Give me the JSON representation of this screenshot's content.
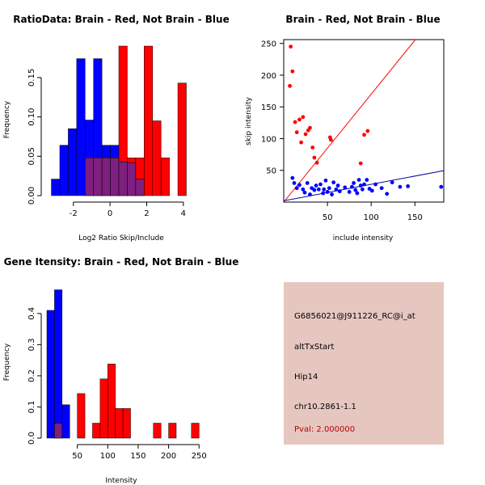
{
  "colors": {
    "red": "#ff0000",
    "blue": "#0000ff",
    "overlap": "#7f1f7f",
    "info_bg": "#e6c7c0",
    "pval": "#bb0000",
    "red_line": "#ff0000",
    "blue_line": "#0000aa"
  },
  "chart_data": [
    {
      "id": "ratio",
      "type": "bar",
      "title": "RatioData: Brain - Red, Not Brain - Blue",
      "xlabel": "Log2 Ratio Skip/Include",
      "ylabel": "Frequency",
      "xlim": [
        -3.4,
        4.8
      ],
      "ylim": [
        0,
        0.19
      ],
      "xticks": [
        -2,
        0,
        2,
        4
      ],
      "yticks": [
        0.0,
        0.05,
        0.1,
        0.15
      ],
      "ytick_labels": [
        "0.00",
        "0.05",
        "0.10",
        "0.15"
      ],
      "bin_width": 0.46,
      "series": [
        {
          "name": "Not Brain",
          "color": "blue",
          "bins": [
            [
              -3.2,
              0.021
            ],
            [
              -2.74,
              0.064
            ],
            [
              -2.28,
              0.085
            ],
            [
              -1.82,
              0.174
            ],
            [
              -1.36,
              0.096
            ],
            [
              -0.9,
              0.174
            ],
            [
              -0.44,
              0.064
            ],
            [
              0.02,
              0.064
            ],
            [
              0.48,
              0.043
            ],
            [
              0.94,
              0.042
            ],
            [
              1.4,
              0.021
            ]
          ]
        },
        {
          "name": "Brain",
          "color": "red",
          "bins": [
            [
              -1.36,
              0.048
            ],
            [
              -0.9,
              0.048
            ],
            [
              -0.44,
              0.048
            ],
            [
              0.02,
              0.048
            ],
            [
              0.48,
              0.19
            ],
            [
              0.94,
              0.048
            ],
            [
              1.4,
              0.048
            ],
            [
              1.86,
              0.19
            ],
            [
              2.32,
              0.095
            ],
            [
              2.78,
              0.048
            ],
            [
              3.7,
              0.143
            ]
          ]
        }
      ]
    },
    {
      "id": "scatter",
      "type": "scatter",
      "title": "Brain - Red, Not Brain - Blue",
      "xlabel": "include intensity",
      "ylabel": "skip intensity",
      "xlim": [
        0,
        183
      ],
      "ylim": [
        0,
        256
      ],
      "xticks": [
        50,
        100,
        150
      ],
      "yticks": [
        50,
        100,
        150,
        200,
        250
      ],
      "red_line": {
        "slope": 1.7,
        "intercept": 0
      },
      "blue_line": {
        "slope": 0.26,
        "intercept": 2
      },
      "series": [
        {
          "name": "Brain",
          "color": "red",
          "points": [
            [
              7,
              183
            ],
            [
              8,
              245
            ],
            [
              10,
              206
            ],
            [
              13,
              126
            ],
            [
              15,
              110
            ],
            [
              18,
              130
            ],
            [
              20,
              94
            ],
            [
              22,
              134
            ],
            [
              25,
              107
            ],
            [
              28,
              113
            ],
            [
              30,
              117
            ],
            [
              33,
              86
            ],
            [
              35,
              70
            ],
            [
              38,
              62
            ],
            [
              53,
              102
            ],
            [
              54,
              98
            ],
            [
              88,
              61
            ],
            [
              92,
              106
            ],
            [
              96,
              112
            ]
          ]
        },
        {
          "name": "Not Brain",
          "color": "blue",
          "points": [
            [
              10,
              38
            ],
            [
              12,
              30
            ],
            [
              15,
              22
            ],
            [
              18,
              27
            ],
            [
              22,
              20
            ],
            [
              24,
              15
            ],
            [
              27,
              30
            ],
            [
              30,
              12
            ],
            [
              32,
              22
            ],
            [
              35,
              19
            ],
            [
              37,
              26
            ],
            [
              40,
              20
            ],
            [
              42,
              28
            ],
            [
              45,
              14
            ],
            [
              46,
              20
            ],
            [
              48,
              34
            ],
            [
              50,
              16
            ],
            [
              52,
              22
            ],
            [
              55,
              12
            ],
            [
              57,
              31
            ],
            [
              60,
              20
            ],
            [
              62,
              26
            ],
            [
              64,
              17
            ],
            [
              70,
              23
            ],
            [
              75,
              16
            ],
            [
              78,
              24
            ],
            [
              80,
              30
            ],
            [
              82,
              19
            ],
            [
              84,
              14
            ],
            [
              86,
              35
            ],
            [
              88,
              26
            ],
            [
              90,
              20
            ],
            [
              92,
              28
            ],
            [
              95,
              35
            ],
            [
              98,
              21
            ],
            [
              101,
              18
            ],
            [
              105,
              28
            ],
            [
              112,
              22
            ],
            [
              118,
              13
            ],
            [
              124,
              31
            ],
            [
              133,
              24
            ],
            [
              142,
              25
            ],
            [
              180,
              24
            ]
          ]
        }
      ]
    },
    {
      "id": "intensity",
      "type": "bar",
      "title": "Gene Itensity: Brain - Red, Not Brain - Blue",
      "xlabel": "Intensity",
      "ylabel": "Frequency",
      "xlim": [
        0,
        255
      ],
      "ylim": [
        0,
        0.48
      ],
      "xticks": [
        50,
        100,
        150,
        200,
        250
      ],
      "yticks": [
        0.0,
        0.1,
        0.2,
        0.3,
        0.4
      ],
      "ytick_labels": [
        "0.0",
        "0.1",
        "0.2",
        "0.3",
        "0.4"
      ],
      "bin_width": 12.5,
      "series": [
        {
          "name": "Not Brain",
          "color": "blue",
          "bins": [
            [
              0,
              0.41
            ],
            [
              12.5,
              0.476
            ],
            [
              25,
              0.107
            ]
          ]
        },
        {
          "name": "Brain",
          "color": "red",
          "bins": [
            [
              12.5,
              0.048
            ],
            [
              50,
              0.143
            ],
            [
              75,
              0.048
            ],
            [
              87.5,
              0.19
            ],
            [
              100,
              0.238
            ],
            [
              112.5,
              0.095
            ],
            [
              125,
              0.095
            ],
            [
              175,
              0.048
            ],
            [
              200,
              0.048
            ],
            [
              237.5,
              0.048
            ]
          ]
        }
      ]
    }
  ],
  "info": {
    "probe_id": "G6856021@J911226_RC@i_at",
    "event_type": "altTxStart",
    "gene": "Hip14",
    "location": "chr10.2861-1.1",
    "pval": "Pval: 2.000000"
  }
}
